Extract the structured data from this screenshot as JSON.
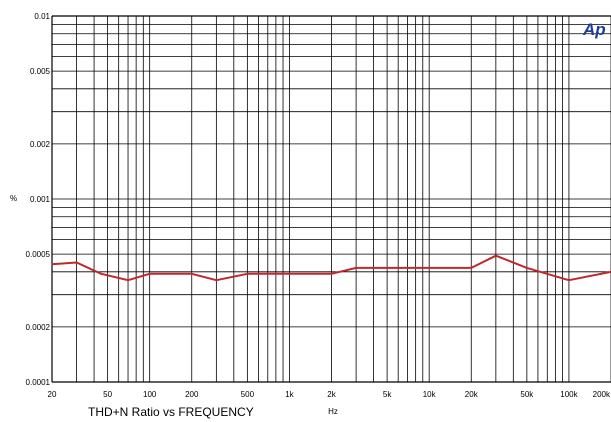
{
  "chart_data": {
    "type": "line",
    "title": "THD+N Ratio vs FREQUENCY",
    "xlabel": "Hz",
    "ylabel": "%",
    "x_scale": "log",
    "y_scale": "log",
    "xlim": [
      20,
      200000
    ],
    "ylim": [
      0.0001,
      0.01
    ],
    "grid": true,
    "x_ticks": [
      {
        "value": 20,
        "label": "20"
      },
      {
        "value": 50,
        "label": "50"
      },
      {
        "value": 100,
        "label": "100"
      },
      {
        "value": 200,
        "label": "200"
      },
      {
        "value": 500,
        "label": "500"
      },
      {
        "value": 1000,
        "label": "1k"
      },
      {
        "value": 2000,
        "label": "2k"
      },
      {
        "value": 5000,
        "label": "5k"
      },
      {
        "value": 10000,
        "label": "10k"
      },
      {
        "value": 20000,
        "label": "20k"
      },
      {
        "value": 50000,
        "label": "50k"
      },
      {
        "value": 100000,
        "label": "100k"
      },
      {
        "value": 200000,
        "label": "200k"
      }
    ],
    "y_ticks": [
      {
        "value": 0.0001,
        "label": "0.0001"
      },
      {
        "value": 0.0002,
        "label": "0.0002"
      },
      {
        "value": 0.0005,
        "label": "0.0005"
      },
      {
        "value": 0.001,
        "label": "0.001"
      },
      {
        "value": 0.002,
        "label": "0.002"
      },
      {
        "value": 0.005,
        "label": "0.005"
      },
      {
        "value": 0.01,
        "label": "0.01"
      }
    ],
    "series": [
      {
        "color": "#c0282d",
        "x": [
          20,
          30,
          45,
          70,
          100,
          200,
          300,
          500,
          1000,
          2000,
          3000,
          5000,
          10000,
          20000,
          30000,
          50000,
          100000,
          200000
        ],
        "y": [
          0.00044,
          0.00045,
          0.00039,
          0.00036,
          0.00039,
          0.00039,
          0.00036,
          0.00039,
          0.00039,
          0.00039,
          0.00042,
          0.00042,
          0.00042,
          0.00042,
          0.00049,
          0.00042,
          0.00036,
          0.0004
        ]
      }
    ]
  },
  "logo": {
    "text": "Ap",
    "color": "#1c3d9c"
  },
  "colors": {
    "grid": "#000000",
    "background": "#ffffff"
  }
}
